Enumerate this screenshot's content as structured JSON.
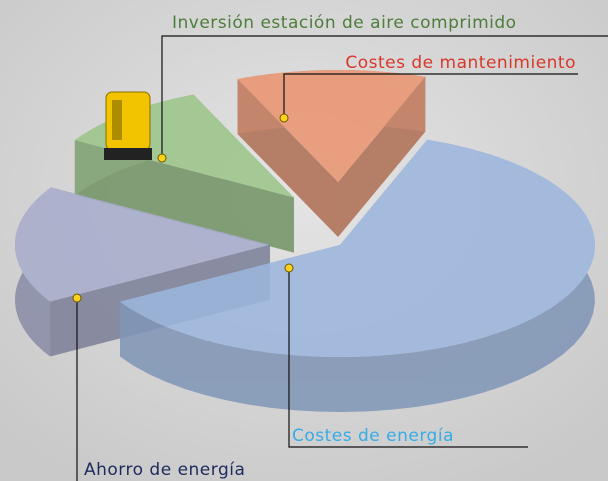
{
  "chart_data": {
    "type": "pie",
    "categories": [
      "Costes de energía",
      "Ahorro de energía",
      "Inversión estación de aire comprimido",
      "Costes de mantenimiento"
    ],
    "values": [
      61,
      17,
      10,
      12
    ],
    "colors": [
      "#9db7de",
      "#a8adcc",
      "#9cc68a",
      "#ea9672"
    ],
    "label_colors": [
      "#35ade6",
      "#1c2a5c",
      "#4d7d3a",
      "#d9372a"
    ],
    "exploded": [
      false,
      true,
      true,
      true
    ]
  }
}
